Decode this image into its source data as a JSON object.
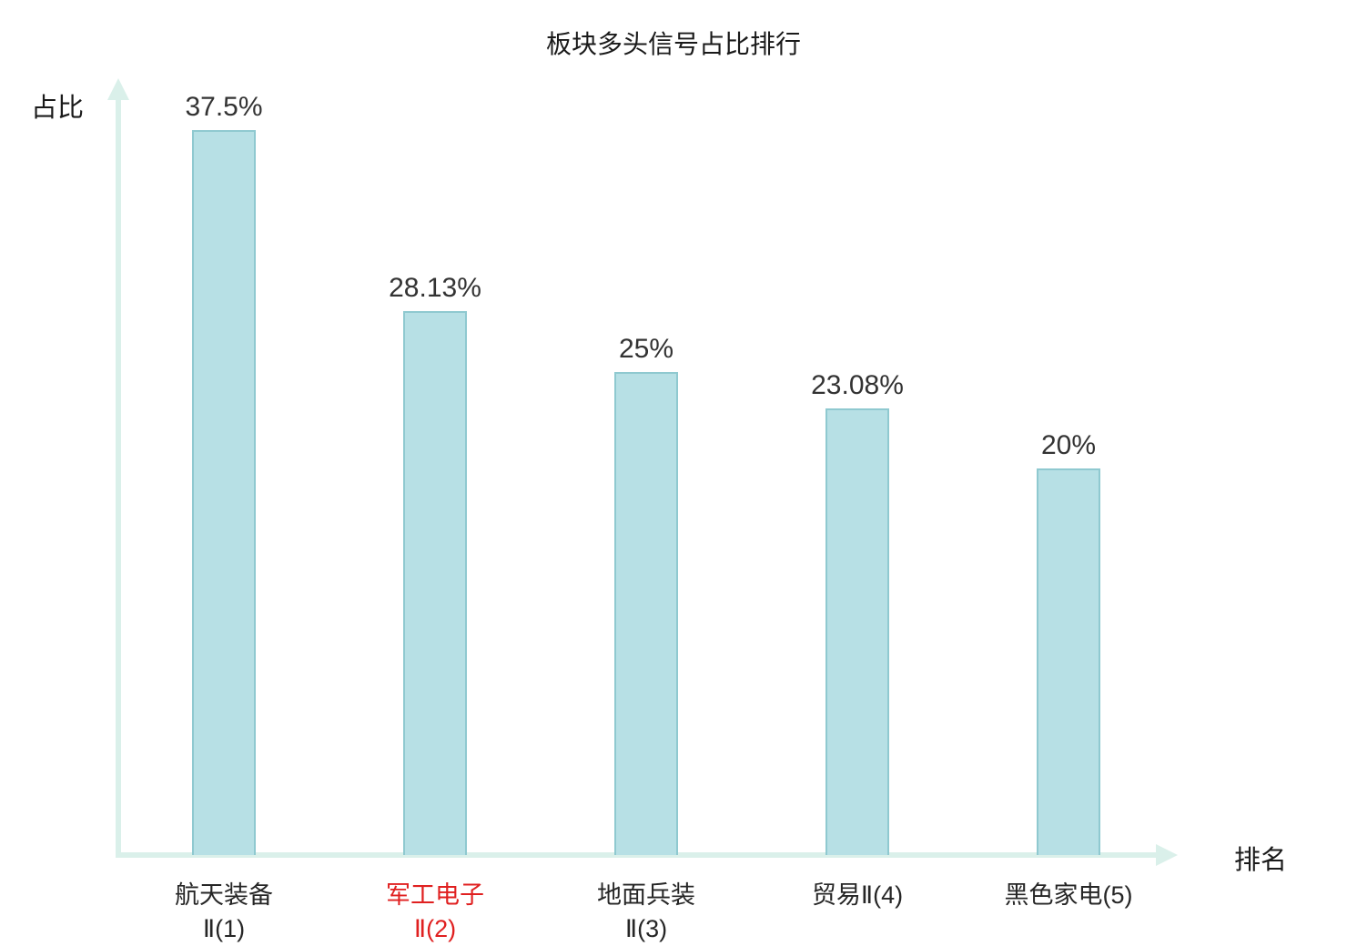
{
  "chart_data": {
    "type": "bar",
    "title": "板块多头信号占比排行",
    "xlabel": "排名",
    "ylabel": "占比",
    "categories": [
      "航天装备Ⅱ(1)",
      "军工电子Ⅱ(2)",
      "地面兵装Ⅱ(3)",
      "贸易Ⅱ(4)",
      "黑色家电(5)"
    ],
    "category_label_lines": [
      [
        "航天装备",
        "Ⅱ(1)"
      ],
      [
        "军工电子",
        "Ⅱ(2)"
      ],
      [
        "地面兵装",
        "Ⅱ(3)"
      ],
      [
        "贸易Ⅱ(4)"
      ],
      [
        "黑色家电(5)"
      ]
    ],
    "values": [
      37.5,
      28.13,
      25,
      23.08,
      20
    ],
    "value_labels": [
      "37.5%",
      "28.13%",
      "25%",
      "23.08%",
      "20%"
    ],
    "ylim": [
      0,
      40
    ],
    "grid": false,
    "legend": null,
    "highlight_index": 1,
    "colors": {
      "bar_fill": "#b7e0e5",
      "bar_border": "#8fc9d0",
      "axis": "#daf0ea",
      "text": "#262626",
      "value_text": "#333333",
      "highlight_text": "#e02020",
      "background": "#ffffff"
    }
  }
}
